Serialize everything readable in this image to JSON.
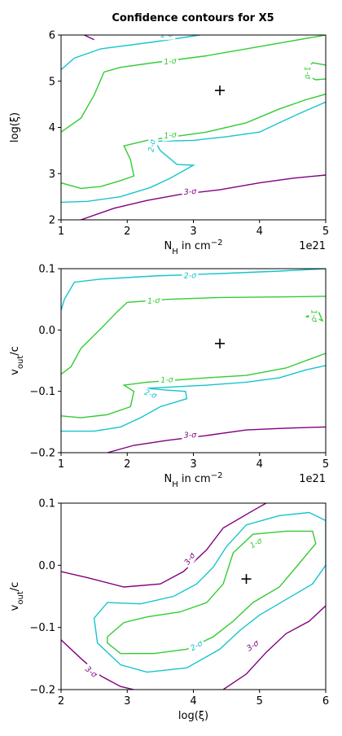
{
  "title": "Confidence contours for X5",
  "colors": {
    "one_sigma": "#33cc33",
    "two_sigma": "#17c4cc",
    "three_sigma": "#800080"
  },
  "chart_data": [
    {
      "type": "contour",
      "xlabel": "N_H in cm^-2",
      "ylabel": "log(ξ)",
      "xlim": [
        1,
        5
      ],
      "ylim": [
        2,
        6
      ],
      "xticks": [
        "1",
        "2",
        "3",
        "4",
        "5"
      ],
      "yticks": [
        "2",
        "3",
        "4",
        "5",
        "6"
      ],
      "x_offset_label": "1e21",
      "best_fit": [
        3.4,
        4.8
      ],
      "contours": [
        {
          "level": "1-σ",
          "color": "#33cc33",
          "label": "1-σ",
          "label_pos": [
            2.65,
            5.42
          ],
          "label_rot": -6,
          "points": [
            [
              1,
              3.9
            ],
            [
              1.3,
              4.2
            ],
            [
              1.5,
              4.7
            ],
            [
              1.65,
              5.2
            ],
            [
              1.9,
              5.3
            ],
            [
              2.4,
              5.4
            ],
            [
              3.2,
              5.55
            ],
            [
              4,
              5.75
            ],
            [
              5,
              6
            ]
          ]
        },
        {
          "level": "1-σ",
          "color": "#33cc33",
          "label": "1-σ",
          "label_pos": [
            4.72,
            5.18
          ],
          "label_rot": 85,
          "points": [
            [
              5,
              5.35
            ],
            [
              4.8,
              5.4
            ],
            [
              4.72,
              5.25
            ],
            [
              4.75,
              5.1
            ],
            [
              4.85,
              5.03
            ],
            [
              5,
              5.05
            ]
          ]
        },
        {
          "level": "1-σ",
          "color": "#33cc33",
          "label": "1-σ",
          "label_pos": [
            2.65,
            3.82
          ],
          "label_rot": -6,
          "points": [
            [
              1,
              2.8
            ],
            [
              1.3,
              2.68
            ],
            [
              1.6,
              2.72
            ],
            [
              1.9,
              2.85
            ],
            [
              2.1,
              2.95
            ],
            [
              2.05,
              3.3
            ],
            [
              1.95,
              3.6
            ],
            [
              2.3,
              3.72
            ],
            [
              3.2,
              3.9
            ],
            [
              3.8,
              4.1
            ],
            [
              4.3,
              4.4
            ],
            [
              4.7,
              4.6
            ],
            [
              5,
              4.72
            ]
          ]
        },
        {
          "level": "2-σ",
          "color": "#17c4cc",
          "label": "2-σ",
          "label_pos": [
            2.6,
            6.0
          ],
          "label_rot": -4,
          "points": [
            [
              1,
              5.25
            ],
            [
              1.2,
              5.5
            ],
            [
              1.6,
              5.7
            ],
            [
              2.4,
              5.85
            ],
            [
              3.1,
              6
            ]
          ]
        },
        {
          "level": "2-σ",
          "color": "#17c4cc",
          "label": "2-σ",
          "label_pos": [
            2.38,
            3.6
          ],
          "label_rot": -80,
          "points": [
            [
              1,
              2.38
            ],
            [
              1.4,
              2.4
            ],
            [
              1.9,
              2.5
            ],
            [
              2.35,
              2.7
            ],
            [
              2.65,
              2.9
            ],
            [
              3,
              3.18
            ],
            [
              2.75,
              3.2
            ],
            [
              2.6,
              3.38
            ],
            [
              2.5,
              3.5
            ],
            [
              2.42,
              3.7
            ],
            [
              3,
              3.72
            ],
            [
              3.5,
              3.8
            ],
            [
              4,
              3.9
            ],
            [
              4.3,
              4.1
            ],
            [
              4.6,
              4.3
            ],
            [
              5,
              4.55
            ]
          ]
        },
        {
          "level": "3-σ",
          "color": "#800080",
          "label": "3-σ",
          "label_pos": [
            2.95,
            2.6
          ],
          "label_rot": -4,
          "points": [
            [
              1.35,
              6
            ],
            [
              1.5,
              5.9
            ]
          ]
        },
        {
          "level": "3-σ",
          "color": "#800080",
          "label": "3-σ",
          "label_pos": [
            2.95,
            2.6
          ],
          "label_rot": -4,
          "points": [
            [
              1.3,
              2
            ],
            [
              1.8,
              2.25
            ],
            [
              2.3,
              2.42
            ],
            [
              2.8,
              2.55
            ],
            [
              3.4,
              2.65
            ],
            [
              4,
              2.8
            ],
            [
              4.5,
              2.9
            ],
            [
              5,
              2.97
            ]
          ]
        }
      ]
    },
    {
      "type": "contour",
      "xlabel": "N_H in cm^-2",
      "ylabel": "v_out/c",
      "xlim": [
        1,
        5
      ],
      "ylim": [
        -0.2,
        0.1
      ],
      "xticks": [
        "1",
        "2",
        "3",
        "4",
        "5"
      ],
      "yticks": [
        "−0.2",
        "−0.1",
        "0.0",
        "0.1"
      ],
      "x_offset_label": "1e21",
      "best_fit": [
        3.4,
        -0.022
      ],
      "contours": [
        {
          "level": "2-σ",
          "color": "#17c4cc",
          "label": "2-σ",
          "label_pos": [
            2.95,
            0.088
          ],
          "label_rot": -2,
          "points": [
            [
              1,
              0.032
            ],
            [
              1.05,
              0.05
            ],
            [
              1.2,
              0.078
            ],
            [
              1.6,
              0.083
            ],
            [
              2.4,
              0.088
            ],
            [
              3.4,
              0.092
            ],
            [
              4.3,
              0.096
            ],
            [
              5,
              0.1
            ]
          ]
        },
        {
          "level": "1-σ",
          "color": "#33cc33",
          "label": "1-σ",
          "label_pos": [
            2.4,
            0.047
          ],
          "label_rot": -4,
          "points": [
            [
              1,
              -0.072
            ],
            [
              1.15,
              -0.06
            ],
            [
              1.3,
              -0.03
            ],
            [
              1.6,
              0.002
            ],
            [
              1.85,
              0.03
            ],
            [
              2,
              0.045
            ],
            [
              2.6,
              0.05
            ],
            [
              3.4,
              0.053
            ],
            [
              4.3,
              0.054
            ],
            [
              5,
              0.055
            ]
          ]
        },
        {
          "level": "1-σ",
          "color": "#33cc33",
          "label": "1-σ",
          "label_pos": [
            4.82,
            0.023
          ],
          "label_rot": 85,
          "points": [
            [
              4.7,
              0.022
            ],
            [
              4.9,
              0.028
            ],
            [
              4.95,
              0.015
            ],
            [
              4.85,
              0.02
            ],
            [
              4.7,
              0.022
            ]
          ]
        },
        {
          "level": "1-σ",
          "color": "#33cc33",
          "label": "1-σ",
          "label_pos": [
            2.6,
            -0.082
          ],
          "label_rot": -2,
          "points": [
            [
              1,
              -0.14
            ],
            [
              1.3,
              -0.143
            ],
            [
              1.7,
              -0.138
            ],
            [
              2.05,
              -0.125
            ],
            [
              2.1,
              -0.1
            ],
            [
              1.95,
              -0.09
            ],
            [
              2.3,
              -0.085
            ],
            [
              3.2,
              -0.078
            ],
            [
              3.8,
              -0.074
            ],
            [
              4.4,
              -0.062
            ],
            [
              5,
              -0.038
            ]
          ]
        },
        {
          "level": "2-σ",
          "color": "#17c4cc",
          "label": "2-σ",
          "label_pos": [
            2.35,
            -0.105
          ],
          "label_rot": 20,
          "points": [
            [
              1,
              -0.165
            ],
            [
              1.5,
              -0.165
            ],
            [
              1.9,
              -0.158
            ],
            [
              2.2,
              -0.143
            ],
            [
              2.5,
              -0.125
            ],
            [
              2.9,
              -0.112
            ],
            [
              2.88,
              -0.1
            ],
            [
              2.6,
              -0.098
            ],
            [
              2.3,
              -0.095
            ],
            [
              3.2,
              -0.09
            ],
            [
              3.8,
              -0.085
            ],
            [
              4.3,
              -0.078
            ],
            [
              4.7,
              -0.065
            ],
            [
              5,
              -0.058
            ]
          ]
        },
        {
          "level": "3-σ",
          "color": "#800080",
          "label": "3-σ",
          "label_pos": [
            2.95,
            -0.172
          ],
          "label_rot": -2,
          "points": [
            [
              1.7,
              -0.2
            ],
            [
              2.1,
              -0.188
            ],
            [
              2.6,
              -0.18
            ],
            [
              3.2,
              -0.172
            ],
            [
              3.8,
              -0.163
            ],
            [
              4.4,
              -0.16
            ],
            [
              5,
              -0.158
            ]
          ]
        }
      ]
    },
    {
      "type": "contour",
      "xlabel": "log(ξ)",
      "ylabel": "v_out/c",
      "xlim": [
        2,
        6
      ],
      "ylim": [
        -0.2,
        0.1
      ],
      "xticks": [
        "2",
        "3",
        "4",
        "5",
        "6"
      ],
      "yticks": [
        "−0.2",
        "−0.1",
        "0.0",
        "0.1"
      ],
      "x_offset_label": "",
      "best_fit": [
        4.8,
        -0.022
      ],
      "contours": [
        {
          "level": "1-σ",
          "color": "#33cc33",
          "label": "1-σ",
          "label_pos": [
            4.95,
            0.035
          ],
          "label_rot": -30,
          "points": [
            [
              2.7,
              -0.115
            ],
            [
              2.95,
              -0.092
            ],
            [
              3.3,
              -0.083
            ],
            [
              3.8,
              -0.075
            ],
            [
              4.2,
              -0.06
            ],
            [
              4.45,
              -0.03
            ],
            [
              4.6,
              0.02
            ],
            [
              4.9,
              0.05
            ],
            [
              5.4,
              0.055
            ],
            [
              5.8,
              0.055
            ],
            [
              5.85,
              0.035
            ],
            [
              5.6,
              0.003
            ],
            [
              5.3,
              -0.035
            ],
            [
              4.9,
              -0.06
            ],
            [
              4.6,
              -0.09
            ],
            [
              4.3,
              -0.115
            ],
            [
              3.9,
              -0.135
            ],
            [
              3.4,
              -0.142
            ],
            [
              2.9,
              -0.142
            ],
            [
              2.7,
              -0.125
            ],
            [
              2.7,
              -0.115
            ]
          ]
        },
        {
          "level": "2-σ",
          "color": "#17c4cc",
          "label": "2-σ",
          "label_pos": [
            4.05,
            -0.13
          ],
          "label_rot": -30,
          "points": [
            [
              2.7,
              -0.06
            ],
            [
              3.2,
              -0.062
            ],
            [
              3.7,
              -0.05
            ],
            [
              4.05,
              -0.03
            ],
            [
              4.3,
              -0.003
            ],
            [
              4.5,
              0.03
            ],
            [
              4.8,
              0.065
            ],
            [
              5.3,
              0.08
            ],
            [
              5.75,
              0.085
            ],
            [
              6,
              0.072
            ],
            [
              6,
              0.0
            ],
            [
              5.8,
              -0.03
            ],
            [
              5.4,
              -0.055
            ],
            [
              5,
              -0.08
            ],
            [
              4.7,
              -0.105
            ],
            [
              4.4,
              -0.135
            ],
            [
              3.9,
              -0.165
            ],
            [
              3.3,
              -0.172
            ],
            [
              2.9,
              -0.16
            ],
            [
              2.55,
              -0.125
            ],
            [
              2.5,
              -0.085
            ],
            [
              2.7,
              -0.06
            ]
          ]
        },
        {
          "level": "3-σ",
          "color": "#800080",
          "label": "3-σ",
          "label_pos": [
            3.95,
            0.01
          ],
          "label_rot": -55,
          "points": [
            [
              2,
              -0.01
            ],
            [
              2.4,
              -0.02
            ],
            [
              2.95,
              -0.035
            ],
            [
              3.5,
              -0.03
            ],
            [
              3.85,
              -0.01
            ],
            [
              4.2,
              0.025
            ],
            [
              4.45,
              0.06
            ],
            [
              4.9,
              0.088
            ],
            [
              5.1,
              0.1
            ]
          ]
        },
        {
          "level": "3-σ",
          "color": "#800080",
          "label": "3-σ",
          "label_pos": [
            4.9,
            -0.13
          ],
          "label_rot": -35,
          "points": [
            [
              4.45,
              -0.2
            ],
            [
              4.8,
              -0.175
            ],
            [
              5.1,
              -0.14
            ],
            [
              5.4,
              -0.11
            ],
            [
              5.75,
              -0.09
            ],
            [
              6,
              -0.065
            ]
          ]
        },
        {
          "level": "3-σ",
          "color": "#800080",
          "label": "3-σ",
          "label_pos": [
            2.45,
            -0.172
          ],
          "label_rot": 40,
          "points": [
            [
              2,
              -0.12
            ],
            [
              2.3,
              -0.15
            ],
            [
              2.6,
              -0.178
            ],
            [
              2.9,
              -0.195
            ],
            [
              3.1,
              -0.2
            ]
          ]
        }
      ]
    }
  ]
}
